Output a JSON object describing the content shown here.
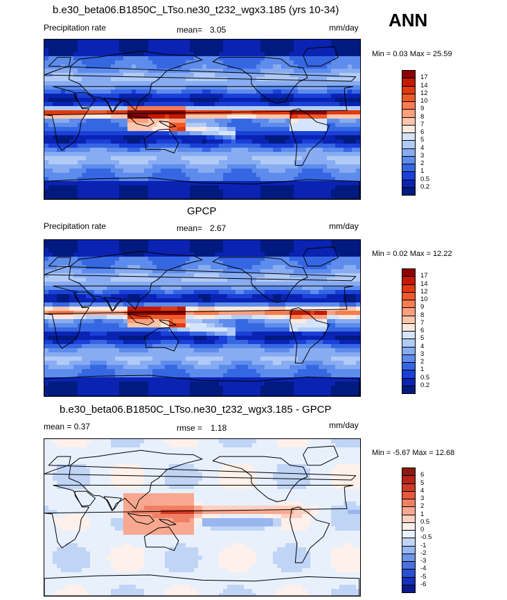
{
  "season": "ANN",
  "panels": [
    {
      "title": "b.e30_beta06.B1850C_LTso.ne30_t232_wgx3.185 (yrs 10-34)",
      "left_label": "Precipitation rate",
      "stat_label": "mean=",
      "stat_value": "3.05",
      "units": "mm/day",
      "minmax": "Min =   0.03 Max =  25.59",
      "colorbar_labels": [
        "17",
        "14",
        "12",
        "10",
        "9",
        "8",
        "7",
        "6",
        "5",
        "4",
        "3",
        "2",
        "1",
        "0.5",
        "0.2"
      ],
      "colorbar_colors": [
        "#8c0000",
        "#c41a00",
        "#e03a10",
        "#f05a2a",
        "#f77c50",
        "#fba07c",
        "#fdc6ac",
        "#fde9de",
        "#d6e4fb",
        "#b0cbf7",
        "#88acf2",
        "#5e8cec",
        "#3667e3",
        "#1a40d8",
        "#0a23b3",
        "#001a80"
      ],
      "map_type": "precip-model"
    },
    {
      "title": "GPCP",
      "left_label": "Precipitation rate",
      "stat_label": "mean=",
      "stat_value": "2.67",
      "units": "mm/day",
      "minmax": "Min =   0.02 Max =  12.22",
      "colorbar_labels": [
        "17",
        "14",
        "12",
        "10",
        "9",
        "8",
        "7",
        "6",
        "5",
        "4",
        "3",
        "2",
        "1",
        "0.5",
        "0.2"
      ],
      "colorbar_colors": [
        "#8c0000",
        "#c41a00",
        "#e03a10",
        "#f05a2a",
        "#f77c50",
        "#fba07c",
        "#fdc6ac",
        "#fde9de",
        "#d6e4fb",
        "#b0cbf7",
        "#88acf2",
        "#5e8cec",
        "#3667e3",
        "#1a40d8",
        "#0a23b3",
        "#001a80"
      ],
      "map_type": "precip-obs"
    },
    {
      "title": "b.e30_beta06.B1850C_LTso.ne30_t232_wgx3.185 - GPCP",
      "left_label": "mean =   0.37",
      "stat_label": "rmse =",
      "stat_value": "1.18",
      "units": "mm/day",
      "minmax": "Min =  -5.67 Max =  12.68",
      "colorbar_labels": [
        "6",
        "5",
        "4",
        "3",
        "2",
        "1",
        "0.5",
        "0",
        "-0.5",
        "-1",
        "-2",
        "-3",
        "-4",
        "-5",
        "-6"
      ],
      "colorbar_colors": [
        "#8c1a10",
        "#b3261a",
        "#d23a26",
        "#e55a3c",
        "#f08064",
        "#f8a890",
        "#fcd0c0",
        "#fef0ea",
        "#e8f0fc",
        "#c0d4f6",
        "#98b6ef",
        "#6e94e7",
        "#4a72de",
        "#2a4fd2",
        "#1530bd",
        "#0a1a8c"
      ],
      "map_type": "diff"
    }
  ]
}
